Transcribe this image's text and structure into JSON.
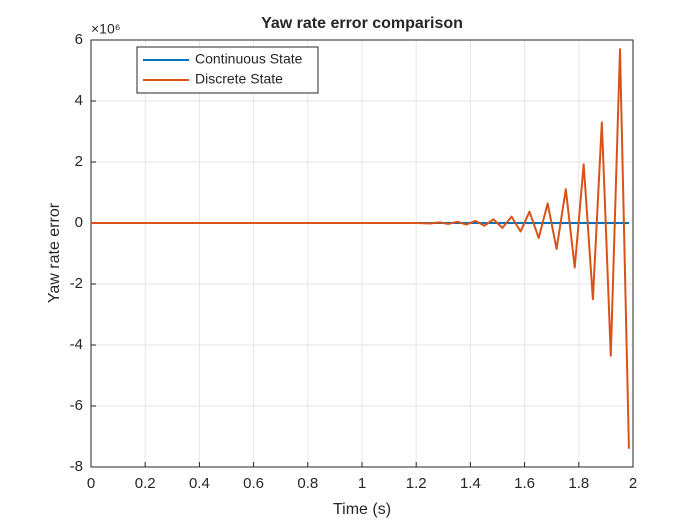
{
  "chart_data": {
    "type": "line",
    "title": "Yaw rate error comparison",
    "xlabel": "Time (s)",
    "ylabel": "Yaw rate error",
    "exponent_label": "×10⁶",
    "xlim": [
      0,
      2
    ],
    "ylim": [
      -8,
      6
    ],
    "xticks": [
      0,
      0.2,
      0.4,
      0.6,
      0.8,
      1,
      1.2,
      1.4,
      1.6,
      1.8,
      2
    ],
    "yticks": [
      -8,
      -6,
      -4,
      -2,
      0,
      2,
      4,
      6
    ],
    "grid": true,
    "legend_position": "upper-left",
    "series": [
      {
        "name": "Continuous State",
        "color": "#0072bd",
        "x": [
          0,
          1.985
        ],
        "values": [
          0,
          0
        ]
      },
      {
        "name": "Discrete State",
        "color": "#d95319",
        "x": [
          0,
          1.2,
          1.252,
          1.285,
          1.318,
          1.352,
          1.385,
          1.418,
          1.452,
          1.485,
          1.518,
          1.552,
          1.585,
          1.618,
          1.652,
          1.685,
          1.718,
          1.752,
          1.785,
          1.818,
          1.852,
          1.885,
          1.918,
          1.952,
          1.985
        ],
        "values": [
          0,
          0,
          -0.015,
          0.02,
          -0.03,
          0.04,
          -0.05,
          0.07,
          -0.09,
          0.12,
          -0.16,
          0.21,
          -0.28,
          0.37,
          -0.49,
          0.64,
          -0.85,
          1.11,
          -1.46,
          1.92,
          -2.5,
          3.3,
          -4.35,
          5.7,
          -7.4
        ]
      }
    ]
  }
}
